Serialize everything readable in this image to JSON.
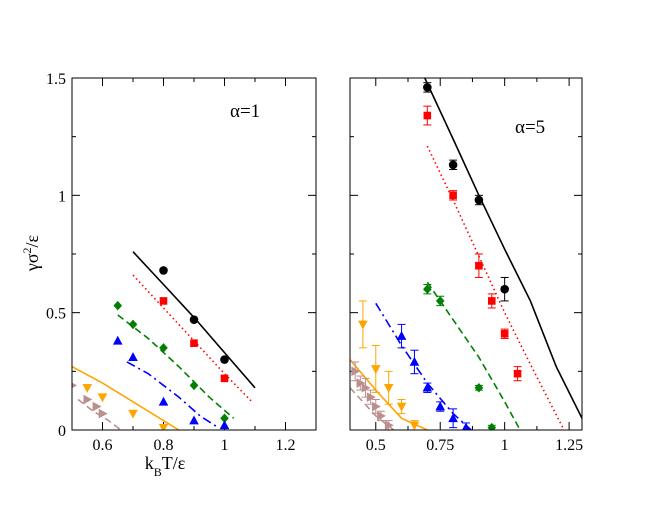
{
  "chart_data": [
    {
      "type": "scatter",
      "panel": "left",
      "annotation": "α=1",
      "xlabel_parts": [
        "k",
        "B",
        "T/ε"
      ],
      "ylabel_parts": [
        "γσ",
        "2",
        "/ε"
      ],
      "xlim": [
        0.5,
        1.3
      ],
      "ylim": [
        0,
        1.5
      ],
      "xticks": [
        0.6,
        0.8,
        1,
        1.2
      ],
      "xtick_labels": [
        "0.6",
        "0.8",
        "1",
        "1.2"
      ],
      "yticks": [
        0,
        0.5,
        1,
        1.5
      ],
      "ytick_labels": [
        "0",
        "0.5",
        "1",
        "1.5"
      ],
      "series": [
        {
          "color": "#000000",
          "marker": "circle",
          "x": [
            0.8,
            0.9,
            1.0
          ],
          "y": [
            0.68,
            0.47,
            0.3
          ],
          "err": [
            0,
            0,
            0
          ],
          "fit": {
            "style": "solid",
            "x": [
              0.7,
              0.8,
              0.9,
              1.0,
              1.1
            ],
            "y": [
              0.76,
              0.62,
              0.48,
              0.33,
              0.18
            ]
          }
        },
        {
          "color": "#ff0000",
          "marker": "square",
          "x": [
            0.8,
            0.9,
            1.0
          ],
          "y": [
            0.55,
            0.37,
            0.22
          ],
          "err": [
            0,
            0,
            0
          ],
          "fit": {
            "style": "dotted",
            "x": [
              0.7,
              0.8,
              0.9,
              1.0,
              1.09
            ],
            "y": [
              0.66,
              0.52,
              0.38,
              0.24,
              0.12
            ]
          }
        },
        {
          "color": "#008000",
          "marker": "diamond",
          "x": [
            0.65,
            0.7,
            0.8,
            0.9,
            1.0
          ],
          "y": [
            0.53,
            0.45,
            0.35,
            0.19,
            0.05
          ],
          "err": [
            0,
            0,
            0,
            0,
            0
          ],
          "fit": {
            "style": "dashed",
            "x": [
              0.65,
              0.75,
              0.85,
              0.95,
              1.03
            ],
            "y": [
              0.49,
              0.39,
              0.27,
              0.14,
              0.05
            ]
          }
        },
        {
          "color": "#0000ff",
          "marker": "triangle-up",
          "x": [
            0.65,
            0.7,
            0.8,
            0.9,
            1.0
          ],
          "y": [
            0.38,
            0.31,
            0.12,
            0.04,
            0.02
          ],
          "err": [
            0,
            0,
            0,
            0,
            0
          ],
          "fit": {
            "style": "dashdot",
            "x": [
              0.68,
              0.75,
              0.85,
              0.92,
              0.98
            ],
            "y": [
              0.29,
              0.24,
              0.14,
              0.06,
              0.01
            ]
          }
        },
        {
          "color": "#ffa500",
          "marker": "triangle-down",
          "x": [
            0.55,
            0.6,
            0.7,
            0.8
          ],
          "y": [
            0.18,
            0.14,
            0.07,
            0.01
          ],
          "err": [
            0,
            0,
            0,
            0
          ],
          "fit": {
            "style": "solid",
            "x": [
              0.5,
              0.6,
              0.7,
              0.8,
              0.85
            ],
            "y": [
              0.27,
              0.2,
              0.12,
              0.04,
              0.0
            ]
          }
        },
        {
          "color": "#bc8f8f",
          "marker": "triangle-right",
          "x": [
            0.5,
            0.55,
            0.58,
            0.6
          ],
          "y": [
            0.19,
            0.13,
            0.1,
            0.07
          ],
          "err": [
            0,
            0,
            0,
            0
          ],
          "fit": {
            "style": "dashed",
            "x": [
              0.52,
              0.57,
              0.62,
              0.66
            ],
            "y": [
              0.13,
              0.08,
              0.04,
              0.0
            ]
          }
        }
      ]
    },
    {
      "type": "scatter",
      "panel": "right",
      "annotation": "α=5",
      "xlabel_parts": [],
      "ylabel_parts": [],
      "xlim": [
        0.4,
        1.3
      ],
      "ylim": [
        0,
        1.5
      ],
      "xticks": [
        0.5,
        0.75,
        1,
        1.25
      ],
      "xtick_labels": [
        "0.5",
        "0.75",
        "1",
        "1.25"
      ],
      "yticks": [
        0,
        0.5,
        1,
        1.5
      ],
      "ytick_labels": [],
      "series": [
        {
          "color": "#000000",
          "marker": "circle",
          "x": [
            0.7,
            0.8,
            0.9,
            1.0
          ],
          "y": [
            1.46,
            1.13,
            0.98,
            0.6
          ],
          "err": [
            0.02,
            0.02,
            0.02,
            0.05
          ],
          "fit": {
            "style": "solid",
            "x": [
              0.69,
              0.8,
              0.9,
              1.0,
              1.1,
              1.2,
              1.3
            ],
            "y": [
              1.5,
              1.24,
              1.0,
              0.77,
              0.55,
              0.27,
              0.05
            ]
          }
        },
        {
          "color": "#ff0000",
          "marker": "square",
          "x": [
            0.7,
            0.8,
            0.9,
            0.95,
            1.0,
            1.05
          ],
          "y": [
            1.34,
            1.0,
            0.7,
            0.55,
            0.41,
            0.24
          ],
          "err": [
            0.04,
            0.02,
            0.05,
            0.03,
            0.02,
            0.03
          ],
          "fit": {
            "style": "dotted",
            "x": [
              0.7,
              0.8,
              0.9,
              1.0,
              1.1,
              1.23
            ],
            "y": [
              1.21,
              0.98,
              0.74,
              0.5,
              0.28,
              0.0
            ]
          }
        },
        {
          "color": "#008000",
          "marker": "diamond",
          "x": [
            0.7,
            0.75,
            0.9,
            0.95
          ],
          "y": [
            0.6,
            0.55,
            0.18,
            0.01
          ],
          "err": [
            0.02,
            0.02,
            0.01,
            0.01
          ],
          "fit": {
            "style": "dashed",
            "x": [
              0.7,
              0.8,
              0.9,
              1.0,
              1.06
            ],
            "y": [
              0.63,
              0.47,
              0.31,
              0.12,
              0.0
            ]
          }
        },
        {
          "color": "#0000ff",
          "marker": "triangle-up",
          "x": [
            0.6,
            0.65,
            0.7,
            0.75,
            0.8,
            0.85
          ],
          "y": [
            0.4,
            0.29,
            0.18,
            0.1,
            0.05,
            0.01
          ],
          "err": [
            0.05,
            0.05,
            0.02,
            0.02,
            0.04,
            0.02
          ],
          "fit": {
            "style": "dashdot",
            "x": [
              0.5,
              0.6,
              0.7,
              0.8,
              0.87
            ],
            "y": [
              0.54,
              0.36,
              0.2,
              0.07,
              0.0
            ]
          }
        },
        {
          "color": "#ffa500",
          "marker": "triangle-down",
          "x": [
            0.45,
            0.5,
            0.55,
            0.6,
            0.65
          ],
          "y": [
            0.45,
            0.26,
            0.18,
            0.1,
            0.02
          ],
          "err": [
            0.1,
            0.1,
            0.07,
            0.03,
            0.02
          ],
          "fit": {
            "style": "solid",
            "x": [
              0.4,
              0.5,
              0.6,
              0.7
            ],
            "y": [
              0.3,
              0.17,
              0.05,
              0.0
            ]
          }
        },
        {
          "color": "#bc8f8f",
          "marker": "triangle-right",
          "x": [
            0.42,
            0.44,
            0.46,
            0.48,
            0.5,
            0.52,
            0.55
          ],
          "y": [
            0.25,
            0.2,
            0.18,
            0.14,
            0.1,
            0.06,
            0.02
          ],
          "err": [
            0.04,
            0.03,
            0.04,
            0.03,
            0.03,
            0.02,
            0.02
          ],
          "fit": {
            "style": "dashed",
            "x": [
              0.4,
              0.45,
              0.5,
              0.57
            ],
            "y": [
              0.18,
              0.12,
              0.06,
              0.0
            ]
          }
        }
      ]
    }
  ]
}
